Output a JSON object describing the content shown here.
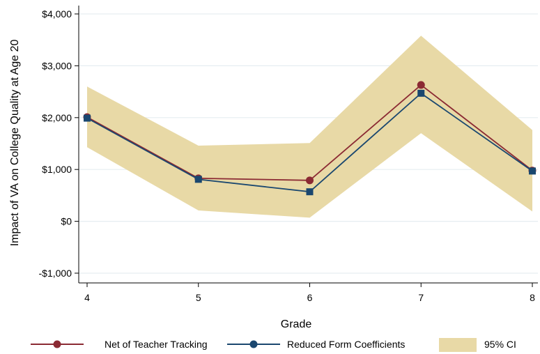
{
  "chart_data": {
    "type": "line",
    "x": [
      4,
      5,
      6,
      7,
      8
    ],
    "xlim": [
      4,
      8
    ],
    "ylim": [
      -1000,
      4000
    ],
    "yticks": [
      -1000,
      0,
      1000,
      2000,
      3000,
      4000
    ],
    "ytick_labels": [
      "-$1,000",
      "$0",
      "$1,000",
      "$2,000",
      "$3,000",
      "$4,000"
    ],
    "xtick_labels": [
      "4",
      "5",
      "6",
      "7",
      "8"
    ],
    "xlabel": "Grade",
    "ylabel": "Impact of VA on College Quality at Age 20",
    "grid": "horizontal",
    "legend_position": "bottom",
    "series": [
      {
        "name": "Net of Teacher Tracking",
        "values": [
          2010,
          830,
          790,
          2630,
          980
        ],
        "color": "#8b2a33",
        "marker": "circle"
      },
      {
        "name": "Reduced Form Coefficients",
        "values": [
          1990,
          810,
          570,
          2470,
          970
        ],
        "color": "#1a476f",
        "marker": "square"
      }
    ],
    "band": {
      "name": "95% CI",
      "lower": [
        1430,
        210,
        70,
        1700,
        190
      ],
      "upper": [
        2600,
        1460,
        1510,
        3580,
        1760
      ],
      "color": "#e8d9a6"
    }
  }
}
